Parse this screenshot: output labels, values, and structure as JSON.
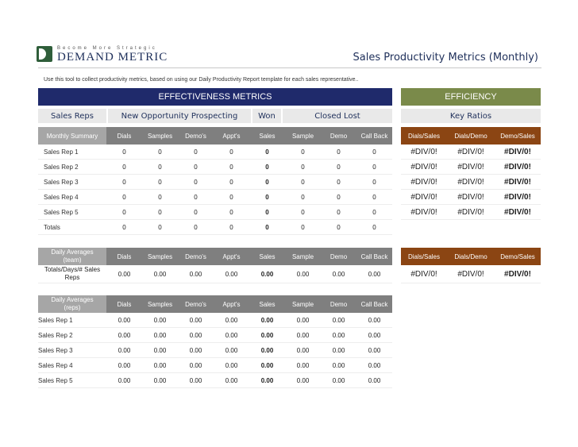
{
  "brand": {
    "tagline": "Become More Strategic",
    "name": "DEMAND METRIC"
  },
  "page_title": "Sales Productivity Metrics (Monthly)",
  "instructions": "Use this tool to collect productivity metrics, based on using our Daily Productivity Report template for each sales representative..",
  "effectiveness_bar": "EFFECTIVENESS METRICS",
  "efficiency_bar": "EFFICIENCY",
  "groups": {
    "sales_reps": "Sales Reps",
    "prospecting": "New Opportunity Prospecting",
    "won": "Won",
    "closed_lost": "Closed Lost",
    "key_ratios": "Key Ratios"
  },
  "columns": [
    "Dials",
    "Samples",
    "Demo's",
    "Appt's",
    "Sales",
    "Sample",
    "Demo",
    "Call Back"
  ],
  "ratio_columns": [
    "Dials/Sales",
    "Dials/Demo",
    "Demo/Sales"
  ],
  "monthly": {
    "label": "Monthly Summary",
    "rows": [
      {
        "name": "Sales Rep 1",
        "values": [
          "0",
          "0",
          "0",
          "0",
          "0",
          "0",
          "0",
          "0"
        ],
        "ratios": [
          "#DIV/0!",
          "#DIV/0!",
          "#DIV/0!"
        ]
      },
      {
        "name": "Sales Rep 2",
        "values": [
          "0",
          "0",
          "0",
          "0",
          "0",
          "0",
          "0",
          "0"
        ],
        "ratios": [
          "#DIV/0!",
          "#DIV/0!",
          "#DIV/0!"
        ]
      },
      {
        "name": "Sales Rep 3",
        "values": [
          "0",
          "0",
          "0",
          "0",
          "0",
          "0",
          "0",
          "0"
        ],
        "ratios": [
          "#DIV/0!",
          "#DIV/0!",
          "#DIV/0!"
        ]
      },
      {
        "name": "Sales Rep 4",
        "values": [
          "0",
          "0",
          "0",
          "0",
          "0",
          "0",
          "0",
          "0"
        ],
        "ratios": [
          "#DIV/0!",
          "#DIV/0!",
          "#DIV/0!"
        ]
      },
      {
        "name": "Sales Rep 5",
        "values": [
          "0",
          "0",
          "0",
          "0",
          "0",
          "0",
          "0",
          "0"
        ],
        "ratios": [
          "#DIV/0!",
          "#DIV/0!",
          "#DIV/0!"
        ]
      },
      {
        "name": "Totals",
        "values": [
          "0",
          "0",
          "0",
          "0",
          "0",
          "0",
          "0",
          "0"
        ]
      }
    ]
  },
  "team_avg": {
    "label_line1": "Daily Averages",
    "label_line2": "(team)",
    "row_label_line1": "Totals/Days/# Sales",
    "row_label_line2": "Reps",
    "values": [
      "0.00",
      "0.00",
      "0.00",
      "0.00",
      "0.00",
      "0.00",
      "0.00",
      "0.00"
    ],
    "ratios": [
      "#DIV/0!",
      "#DIV/0!",
      "#DIV/0!"
    ]
  },
  "rep_avg": {
    "label_line1": "Daily Averages",
    "label_line2": "(reps)",
    "rows": [
      {
        "name": "Sales Rep 1",
        "values": [
          "0.00",
          "0.00",
          "0.00",
          "0.00",
          "0.00",
          "0.00",
          "0.00",
          "0.00"
        ]
      },
      {
        "name": "Sales Rep 2",
        "values": [
          "0.00",
          "0.00",
          "0.00",
          "0.00",
          "0.00",
          "0.00",
          "0.00",
          "0.00"
        ]
      },
      {
        "name": "Sales Rep 3",
        "values": [
          "0.00",
          "0.00",
          "0.00",
          "0.00",
          "0.00",
          "0.00",
          "0.00",
          "0.00"
        ]
      },
      {
        "name": "Sales Rep 4",
        "values": [
          "0.00",
          "0.00",
          "0.00",
          "0.00",
          "0.00",
          "0.00",
          "0.00",
          "0.00"
        ]
      },
      {
        "name": "Sales Rep 5",
        "values": [
          "0.00",
          "0.00",
          "0.00",
          "0.00",
          "0.00",
          "0.00",
          "0.00",
          "0.00"
        ]
      }
    ]
  },
  "colors": {
    "effectiveness": "#1f2a6b",
    "efficiency": "#7a8a4a",
    "ratio_header": "#8b4513",
    "column_header": "#7f7f7f"
  }
}
